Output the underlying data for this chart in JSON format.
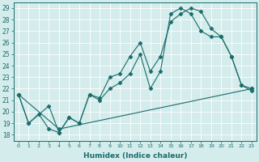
{
  "xlabel": "Humidex (Indice chaleur)",
  "background_color": "#d4ecec",
  "line_color": "#1a6b6b",
  "xlim": [
    -0.5,
    23.5
  ],
  "ylim": [
    17.5,
    29.5
  ],
  "xticks": [
    0,
    1,
    2,
    3,
    4,
    5,
    6,
    7,
    8,
    9,
    10,
    11,
    12,
    13,
    14,
    15,
    16,
    17,
    18,
    19,
    20,
    21,
    22,
    23
  ],
  "yticks": [
    18,
    19,
    20,
    21,
    22,
    23,
    24,
    25,
    26,
    27,
    28,
    29
  ],
  "line1_x": [
    0,
    1,
    2,
    3,
    4,
    5,
    6,
    7,
    8,
    9,
    10,
    11,
    12,
    13,
    14,
    15,
    16,
    17,
    18,
    19,
    20,
    21,
    22,
    23
  ],
  "line1_y": [
    21.5,
    19.0,
    19.8,
    18.5,
    18.2,
    19.5,
    19.0,
    21.5,
    21.2,
    23.0,
    23.3,
    24.8,
    26.0,
    23.5,
    24.8,
    27.8,
    28.5,
    29.0,
    28.7,
    27.2,
    26.5,
    24.8,
    22.3,
    22.0
  ],
  "line2_x": [
    0,
    1,
    3,
    4,
    5,
    6,
    7,
    8,
    9,
    10,
    11,
    12,
    13,
    14,
    15,
    16,
    17,
    18,
    19,
    20,
    21,
    22,
    23
  ],
  "line2_y": [
    21.5,
    19.0,
    20.5,
    18.2,
    19.5,
    19.0,
    21.5,
    21.0,
    22.0,
    22.5,
    23.3,
    25.0,
    22.0,
    23.5,
    28.5,
    29.0,
    28.5,
    27.0,
    26.5,
    26.5,
    24.8,
    22.3,
    21.8
  ],
  "line3_x": [
    0,
    4,
    23
  ],
  "line3_y": [
    21.5,
    18.5,
    22.0
  ]
}
